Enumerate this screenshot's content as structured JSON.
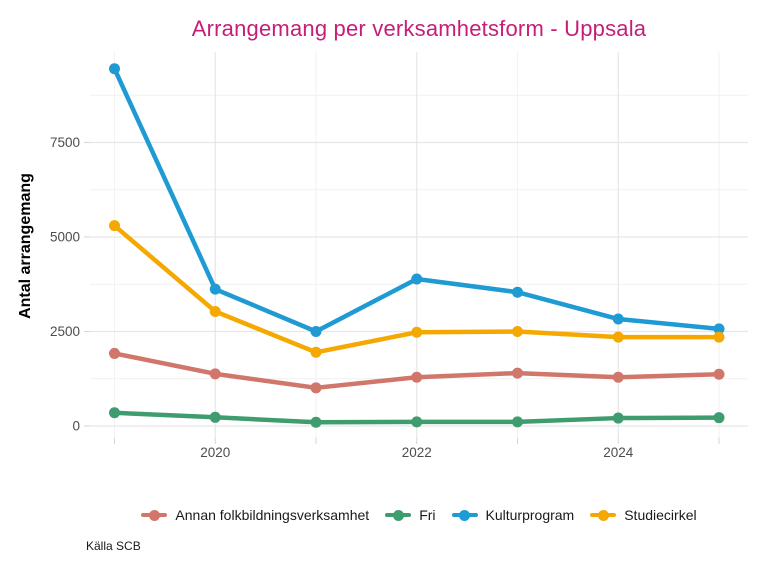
{
  "chart_data": {
    "type": "line",
    "title": "Arrangemang per verksamhetsform - Uppsala",
    "xlabel": "",
    "ylabel": "Antal arrangemang",
    "caption": "Källa SCB",
    "x": [
      2019,
      2020,
      2021,
      2022,
      2023,
      2024,
      2025
    ],
    "series": [
      {
        "name": "Annan folkbildningsverksamhet",
        "color": "#D0766A",
        "values": [
          1920,
          1380,
          1010,
          1290,
          1400,
          1290,
          1370
        ]
      },
      {
        "name": "Fri",
        "color": "#3F9C6E",
        "values": [
          350,
          230,
          100,
          110,
          110,
          210,
          220
        ]
      },
      {
        "name": "Kulturprogram",
        "color": "#1F9AD2",
        "values": [
          9450,
          3620,
          2500,
          3890,
          3540,
          2830,
          2570
        ]
      },
      {
        "name": "Studiecirkel",
        "color": "#F5A800",
        "values": [
          5300,
          3030,
          1950,
          2480,
          2500,
          2350,
          2350
        ]
      }
    ],
    "xticks_major": [
      2020,
      2022,
      2024
    ],
    "xticks_minor": [
      2019,
      2021,
      2023,
      2025
    ],
    "xtick_labels": [
      "2020",
      "2022",
      "2024"
    ],
    "yticks_major": [
      0,
      2500,
      5000,
      7500
    ],
    "yticks_minor": [
      1250,
      3750,
      6250,
      8750
    ],
    "ytick_labels": [
      "0",
      "2500",
      "5000",
      "7500"
    ],
    "xlim": [
      2018.76,
      2025.29
    ],
    "ylim": [
      -320,
      9900
    ],
    "grid": true,
    "legend_position": "bottom"
  },
  "theme": {
    "title_color": "#C51E78",
    "axis_text_color": "#4D4D4D",
    "axis_title_color": "#000000",
    "legend_text_color": "#1A1A1A",
    "grid_major_color": "#E6E6E6",
    "grid_minor_color": "#F1F1F1",
    "tick_color": "#D6D6D6",
    "background_color": "#FFFFFF",
    "line_width": 4.5,
    "point_radius": 5.5
  }
}
